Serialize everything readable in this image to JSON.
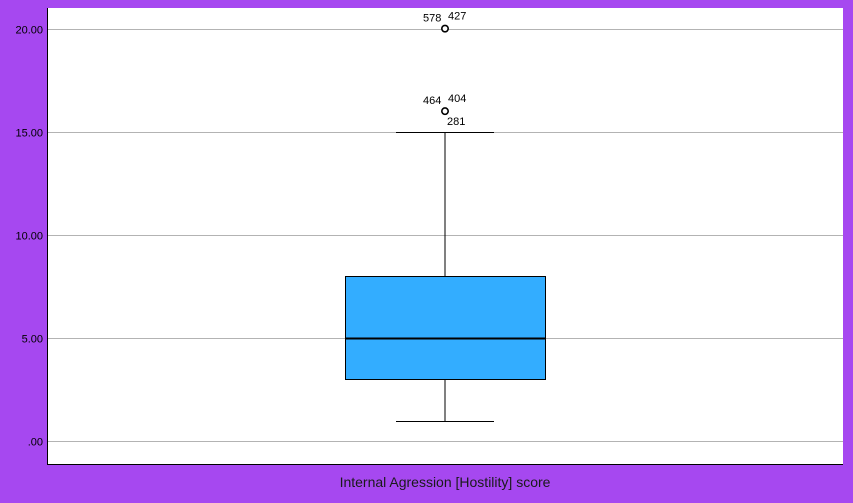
{
  "chart_data": {
    "type": "boxplot",
    "category": "Internal Agression [Hostility] score",
    "ylim": [
      -1.1,
      21.0
    ],
    "yticks": [
      {
        "value": 0,
        "label": ".00"
      },
      {
        "value": 5,
        "label": "5.00"
      },
      {
        "value": 10,
        "label": "10.00"
      },
      {
        "value": 15,
        "label": "15.00"
      },
      {
        "value": 20,
        "label": "20.00"
      }
    ],
    "grid": true,
    "box": {
      "whisker_low": 1,
      "q1": 3,
      "median": 5,
      "q3": 8,
      "whisker_high": 15,
      "fill": "#33adff"
    },
    "outliers": [
      {
        "value": 20,
        "labels": [
          "578",
          "427"
        ]
      },
      {
        "value": 16,
        "labels": [
          "464",
          "404",
          "281"
        ]
      }
    ],
    "colors": {
      "background": "#a648f0",
      "plot_area": "#ffffff",
      "grid": "#b3b3b3"
    }
  }
}
